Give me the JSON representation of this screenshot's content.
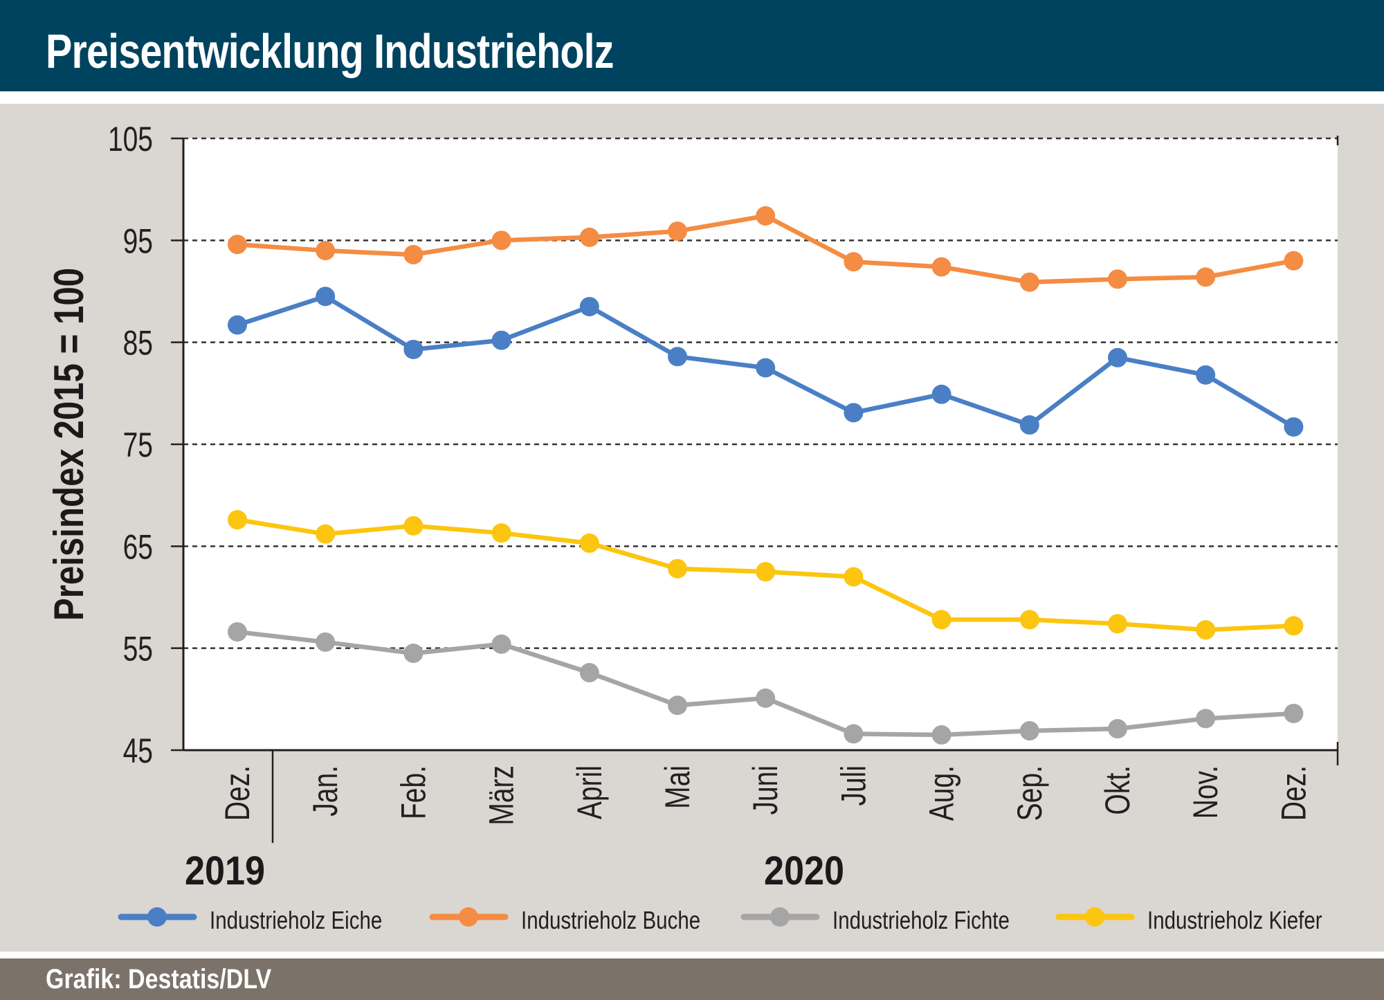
{
  "header": {
    "title": "Preisentwicklung Industrieholz"
  },
  "footer": {
    "credit": "Grafik: Destatis/DLV"
  },
  "chart_data": {
    "type": "line",
    "title": "Preisentwicklung Industrieholz",
    "ylabel": "Preisindex 2015 = 100",
    "xlabel": "",
    "ylim": [
      45,
      105
    ],
    "yticks": [
      45,
      55,
      65,
      75,
      85,
      95,
      105
    ],
    "grid": "horizontal dashed",
    "legend_position": "bottom",
    "categories": [
      "Dez.",
      "Jan.",
      "Feb.",
      "März",
      "April",
      "Mai",
      "Juni",
      "Juli",
      "Aug.",
      "Sep.",
      "Okt.",
      "Nov.",
      "Dez."
    ],
    "year_groups": [
      {
        "label": "2019",
        "start": 0,
        "end": 0
      },
      {
        "label": "2020",
        "start": 1,
        "end": 12
      }
    ],
    "series": [
      {
        "name": "Industrieholz Eiche",
        "color": "#4a7fc5",
        "values": [
          86.7,
          89.5,
          84.3,
          85.2,
          88.5,
          83.6,
          82.5,
          78.1,
          79.9,
          76.9,
          83.5,
          81.8,
          76.7
        ]
      },
      {
        "name": "Industrieholz Buche",
        "color": "#f48c43",
        "values": [
          94.6,
          94.0,
          93.6,
          95.0,
          95.3,
          95.9,
          97.4,
          92.9,
          92.4,
          90.9,
          91.2,
          91.4,
          93.0
        ]
      },
      {
        "name": "Industrieholz Fichte",
        "color": "#a5a5a5",
        "values": [
          56.6,
          55.6,
          54.5,
          55.4,
          52.6,
          49.4,
          50.1,
          46.6,
          46.5,
          46.9,
          47.1,
          48.1,
          48.6
        ]
      },
      {
        "name": "Industrieholz Kiefer",
        "color": "#fcc50f",
        "values": [
          67.6,
          66.2,
          67.0,
          66.3,
          65.3,
          62.8,
          62.5,
          62.0,
          57.8,
          57.8,
          57.4,
          56.8,
          57.2
        ]
      }
    ]
  }
}
